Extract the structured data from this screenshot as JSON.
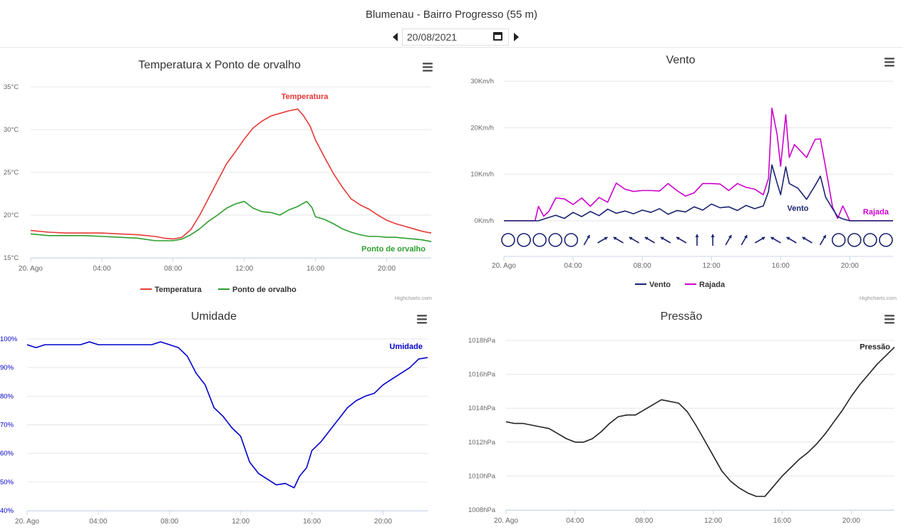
{
  "header": {
    "title": "Blumenau - Bairro Progresso (55 m)",
    "date_value": "20/08/2021"
  },
  "x_ticks": [
    "20. Ago",
    "04:00",
    "08:00",
    "12:00",
    "16:00",
    "20:00"
  ],
  "credits": "Highcharts.com",
  "colors": {
    "temperatura": "#e53935",
    "orvalho": "#2e9e2e",
    "vento": "#1a2370",
    "rajada": "#cc00cc",
    "umidade": "#0000cc",
    "pressao": "#222222"
  },
  "chart_data": [
    {
      "id": "temp",
      "type": "line",
      "title": "Temperatura x Ponto de orvalho",
      "y_ticks": [
        "15°C",
        "20°C",
        "25°C",
        "30°C",
        "35°C"
      ],
      "ylim": [
        15,
        35
      ],
      "x_unit": "hours",
      "xlim": [
        0,
        22.5
      ],
      "legend_position": "bottom",
      "series": [
        {
          "name": "Temperatura",
          "color": "#e53935",
          "x": [
            0,
            1,
            2,
            3,
            4,
            5,
            6,
            7,
            7.5,
            8,
            8.5,
            9,
            9.5,
            10,
            10.5,
            11,
            11.5,
            12,
            12.5,
            13,
            13.5,
            14,
            14.5,
            15,
            15.3,
            15.7,
            16,
            16.5,
            17,
            17.5,
            18,
            18.5,
            19,
            19.5,
            20,
            20.5,
            21,
            21.5,
            22,
            22.5
          ],
          "values": [
            18.2,
            18.0,
            17.9,
            17.9,
            17.9,
            17.8,
            17.7,
            17.5,
            17.3,
            17.2,
            17.4,
            18.3,
            20.0,
            22.0,
            24.0,
            26.0,
            27.4,
            28.9,
            30.2,
            31.0,
            31.6,
            31.9,
            32.2,
            32.4,
            31.7,
            30.4,
            28.8,
            26.8,
            24.9,
            23.3,
            21.9,
            21.2,
            20.7,
            20.0,
            19.4,
            19.0,
            18.7,
            18.4,
            18.1,
            17.9
          ],
          "label": "Temperatura"
        },
        {
          "name": "Ponto de orvalho",
          "color": "#2e9e2e",
          "x": [
            0,
            1,
            2,
            3,
            4,
            5,
            6,
            7,
            7.5,
            8,
            8.5,
            9,
            9.5,
            10,
            10.5,
            11,
            11.5,
            12,
            12.5,
            13,
            13.5,
            14,
            14.5,
            15,
            15.5,
            15.8,
            16,
            16.5,
            17,
            17.5,
            18,
            18.5,
            19,
            19.5,
            20,
            20.5,
            21,
            21.5,
            22,
            22.5
          ],
          "values": [
            17.8,
            17.6,
            17.6,
            17.6,
            17.5,
            17.4,
            17.3,
            17.0,
            17.0,
            17.0,
            17.2,
            17.7,
            18.4,
            19.3,
            20.0,
            20.8,
            21.3,
            21.6,
            20.8,
            20.4,
            20.3,
            20.0,
            20.6,
            21.0,
            21.6,
            20.9,
            19.8,
            19.5,
            19.0,
            18.4,
            18.0,
            17.7,
            17.5,
            17.5,
            17.4,
            17.4,
            17.3,
            17.2,
            17.1,
            16.9
          ],
          "label": "Ponto de orvalho"
        }
      ]
    },
    {
      "id": "vento",
      "type": "line",
      "title": "Vento",
      "y_ticks": [
        "0Km/h",
        "10Km/h",
        "20Km/h",
        "30Km/h"
      ],
      "ylim": [
        0,
        30
      ],
      "x_unit": "hours",
      "xlim": [
        0,
        22.5
      ],
      "legend_position": "bottom",
      "series": [
        {
          "name": "Vento",
          "color": "#1a2370",
          "x": [
            0,
            2,
            3,
            3.5,
            4,
            4.5,
            5,
            5.5,
            6,
            6.5,
            7,
            7.5,
            8,
            8.5,
            9,
            9.5,
            10,
            10.5,
            11,
            11.5,
            12,
            12.5,
            13,
            13.5,
            14,
            14.5,
            15,
            15.3,
            15.5,
            15.8,
            16,
            16.3,
            16.5,
            17,
            17.5,
            18,
            18.3,
            18.6,
            19,
            19.3,
            19.6,
            20,
            22.5
          ],
          "values": [
            0,
            0,
            1.2,
            0.5,
            1.8,
            0.9,
            2.0,
            1.1,
            2.5,
            1.6,
            2.1,
            1.5,
            2.3,
            1.8,
            2.6,
            1.4,
            2.2,
            1.9,
            3.0,
            2.3,
            3.6,
            2.8,
            3.0,
            2.2,
            3.3,
            2.6,
            3.2,
            6.3,
            12.0,
            8.1,
            5.6,
            11.6,
            8.0,
            7.0,
            4.6,
            7.6,
            9.6,
            5.1,
            2.6,
            0.9,
            0.4,
            0,
            0
          ],
          "label": "Vento"
        },
        {
          "name": "Rajada",
          "color": "#cc00cc",
          "x": [
            0,
            1.8,
            2,
            2.3,
            2.6,
            3,
            3.5,
            4,
            4.5,
            5,
            5.5,
            6,
            6.5,
            7,
            7.5,
            8,
            8.5,
            9,
            9.5,
            10,
            10.5,
            11,
            11.5,
            12,
            12.5,
            13,
            13.5,
            14,
            14.5,
            15,
            15.3,
            15.5,
            15.8,
            16,
            16.3,
            16.5,
            16.8,
            17,
            17.5,
            18,
            18.3,
            18.6,
            19,
            19.3,
            19.6,
            20,
            22.5
          ],
          "values": [
            0,
            0,
            3.1,
            1.0,
            2.0,
            4.9,
            4.7,
            3.5,
            4.9,
            3.1,
            5.0,
            4.0,
            8.1,
            6.8,
            6.3,
            6.5,
            6.5,
            6.4,
            8.0,
            6.5,
            5.3,
            6.0,
            8.0,
            8.0,
            7.9,
            6.5,
            8.0,
            7.2,
            6.8,
            5.6,
            9.1,
            24.2,
            18.5,
            11.7,
            22.8,
            13.6,
            16.4,
            15.6,
            13.6,
            17.5,
            17.6,
            11.5,
            3.0,
            0.5,
            3.2,
            0,
            0
          ],
          "label": "Rajada"
        }
      ],
      "wind_directions": [
        "calm",
        "calm",
        "calm",
        "calm",
        "calm",
        "NNW",
        "WNW",
        "NE",
        "NE",
        "NE",
        "NE",
        "NE",
        "S",
        "S",
        "SE",
        "SE",
        "WNW",
        "NE",
        "NE",
        "NE",
        "NNW",
        "calm",
        "calm",
        "calm",
        "calm"
      ]
    },
    {
      "id": "umidade",
      "type": "line",
      "title": "Umidade",
      "y_ticks": [
        "40%",
        "50%",
        "60%",
        "70%",
        "80%",
        "90%",
        "100%"
      ],
      "ylim": [
        40,
        100
      ],
      "x_unit": "hours",
      "xlim": [
        0,
        22.5
      ],
      "series": [
        {
          "name": "Umidade",
          "color": "#0000cc",
          "x": [
            0,
            0.5,
            1,
            2,
            3,
            3.5,
            4,
            5,
            6,
            7,
            7.5,
            8,
            8.5,
            9,
            9.5,
            10,
            10.5,
            11,
            11.5,
            12,
            12.5,
            13,
            13.5,
            14,
            14.5,
            15,
            15.3,
            15.7,
            16,
            16.5,
            17,
            17.5,
            18,
            18.5,
            19,
            19.5,
            20,
            20.5,
            21,
            21.5,
            22,
            22.5
          ],
          "values": [
            98,
            97,
            98,
            98,
            98,
            99,
            98,
            98,
            98,
            98,
            99,
            98,
            97,
            94,
            88,
            84,
            76,
            73,
            69,
            66,
            57,
            53,
            51,
            49,
            49.5,
            48,
            52,
            55,
            61,
            64,
            68,
            72,
            76,
            78.5,
            80,
            81,
            84,
            86,
            88,
            90,
            93,
            93.5
          ],
          "label": "Umidade"
        }
      ]
    },
    {
      "id": "pressao",
      "type": "line",
      "title": "Pressão",
      "y_ticks": [
        "1008hPa",
        "1010hPa",
        "1012hPa",
        "1014hPa",
        "1016hPa",
        "1018hPa"
      ],
      "ylim": [
        1008,
        1018
      ],
      "x_unit": "hours",
      "xlim": [
        0,
        22.5
      ],
      "series": [
        {
          "name": "Pressão",
          "color": "#222222",
          "x": [
            0,
            0.5,
            1,
            1.5,
            2,
            2.5,
            3,
            3.5,
            4,
            4.5,
            5,
            5.5,
            6,
            6.5,
            7,
            7.5,
            8,
            8.5,
            9,
            9.5,
            10,
            10.5,
            11,
            11.5,
            12,
            12.5,
            13,
            13.5,
            14,
            14.5,
            15,
            15.5,
            16,
            16.5,
            17,
            17.5,
            18,
            18.5,
            19,
            19.5,
            20,
            20.5,
            21,
            21.5,
            22,
            22.5
          ],
          "values": [
            1013.2,
            1013.1,
            1013.1,
            1013.0,
            1012.9,
            1012.8,
            1012.5,
            1012.2,
            1012.0,
            1012.0,
            1012.2,
            1012.6,
            1013.1,
            1013.5,
            1013.6,
            1013.6,
            1013.9,
            1014.2,
            1014.5,
            1014.4,
            1014.3,
            1013.8,
            1013.0,
            1012.1,
            1011.2,
            1010.3,
            1009.7,
            1009.3,
            1009.0,
            1008.8,
            1008.8,
            1009.4,
            1010.0,
            1010.5,
            1011.0,
            1011.4,
            1011.9,
            1012.5,
            1013.2,
            1013.9,
            1014.7,
            1015.4,
            1016.0,
            1016.6,
            1017.1,
            1017.6
          ],
          "label": "Pressão"
        }
      ]
    }
  ]
}
